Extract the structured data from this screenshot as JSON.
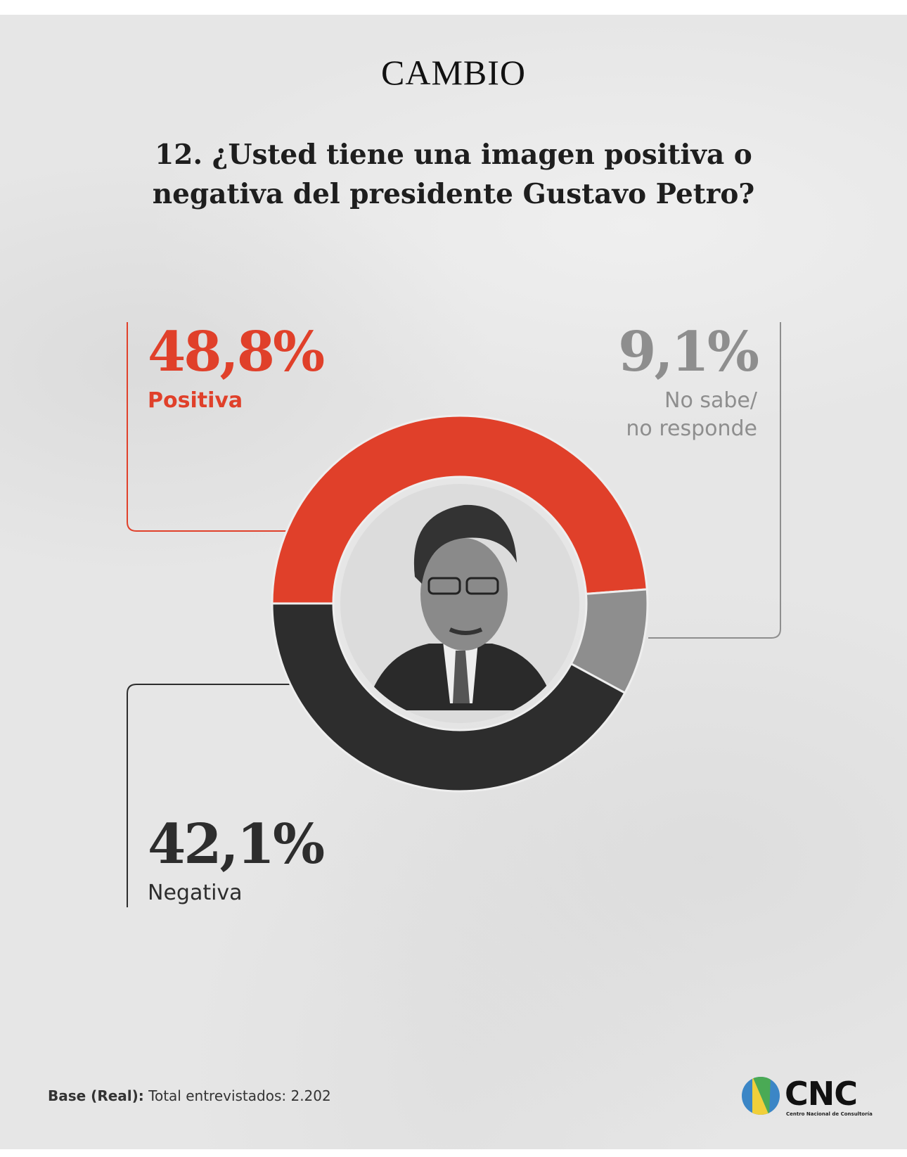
{
  "header": {
    "brand": "CAMBIO",
    "question_line1": "12. ¿Usted tiene una imagen positiva o",
    "question_line2": "negativa del presidente Gustavo Petro?"
  },
  "chart_data": {
    "type": "pie",
    "style": "donut",
    "categories": [
      "Positiva",
      "No sabe/ no responde",
      "Negativa"
    ],
    "values": [
      48.8,
      9.1,
      42.1
    ],
    "value_labels": [
      "48,8%",
      "9,1%",
      "42,1%"
    ],
    "label_lines": {
      "no_sabe_line1": "No sabe/",
      "no_sabe_line2": "no responde"
    },
    "colors": [
      "#e0402a",
      "#8e8e8e",
      "#2d2d2d"
    ],
    "center_image": "portrait-photo"
  },
  "footer": {
    "base_label": "Base (Real):",
    "base_text": "Total entrevistados: 2.202"
  },
  "logo": {
    "name": "CNC",
    "subtitle": "Centro Nacional de Consultoría",
    "colors": [
      "#3b86c6",
      "#4aaa55",
      "#f0cf3a"
    ]
  }
}
